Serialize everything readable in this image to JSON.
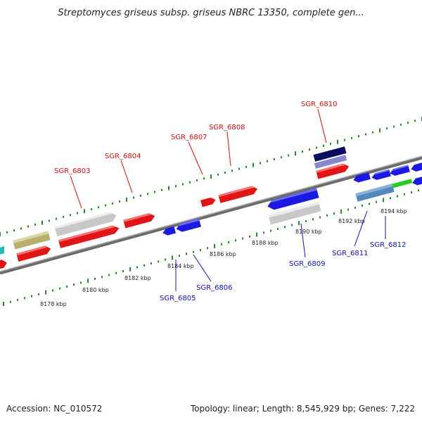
{
  "title": "Streptomyces griseus subsp. griseus NBRC 13350, complete gen...",
  "accession": "Accession: NC_010572",
  "summary": "Topology: linear; Length: 8,545,929 bp; Genes: 7,222",
  "ruler_labels": [
    "8178 kbp",
    "8180 kbp",
    "8182 kbp",
    "8184 kbp",
    "8186 kbp",
    "8188 kbp",
    "8190 kbp",
    "8192 kbp",
    "8194 kbp"
  ],
  "genes_forward": [
    "SGR_6803",
    "SGR_6804",
    "SGR_6807",
    "SGR_6808",
    "SGR_6810"
  ],
  "genes_reverse": [
    "SGR_6805",
    "SGR_6806",
    "SGR_6809",
    "SGR_6811",
    "SGR_6812"
  ],
  "colors": {
    "forward_label": "#d01010",
    "reverse_label": "#1010b0",
    "red_gene": "#e01515",
    "blue_gene": "#1a1ae0",
    "gray_gene": "#c8c8c8",
    "olive_gene": "#b8b070",
    "navy_gene": "#0a0a60",
    "lavender_gene": "#8888cc",
    "steelblue_gene": "#5588bb",
    "green_gene": "#22cc22",
    "cyan_gene": "#22bbbb",
    "tick_green": "#2a8a2a",
    "genome_line": "#808080"
  }
}
